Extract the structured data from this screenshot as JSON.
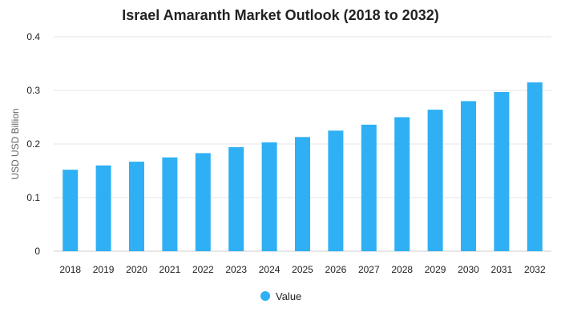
{
  "chart_data": {
    "type": "bar",
    "title": "Israel Amaranth Market Outlook (2018 to 2032)",
    "xlabel": "",
    "ylabel": "USD USD Billion",
    "categories": [
      "2018",
      "2019",
      "2020",
      "2021",
      "2022",
      "2023",
      "2024",
      "2025",
      "2026",
      "2027",
      "2028",
      "2029",
      "2030",
      "2031",
      "2032"
    ],
    "series": [
      {
        "name": "Value",
        "values": [
          0.152,
          0.16,
          0.167,
          0.175,
          0.183,
          0.194,
          0.203,
          0.213,
          0.225,
          0.236,
          0.25,
          0.264,
          0.28,
          0.297,
          0.315
        ]
      }
    ],
    "ylim": [
      0,
      0.4
    ],
    "yticks": [
      "0",
      "0.1",
      "0.2",
      "0.3",
      "0.4"
    ],
    "grid": true,
    "legend_position": "bottom-center",
    "colors": {
      "bar": "#2fb0f5",
      "grid": "#e6e6e6",
      "text": "#222222"
    }
  }
}
